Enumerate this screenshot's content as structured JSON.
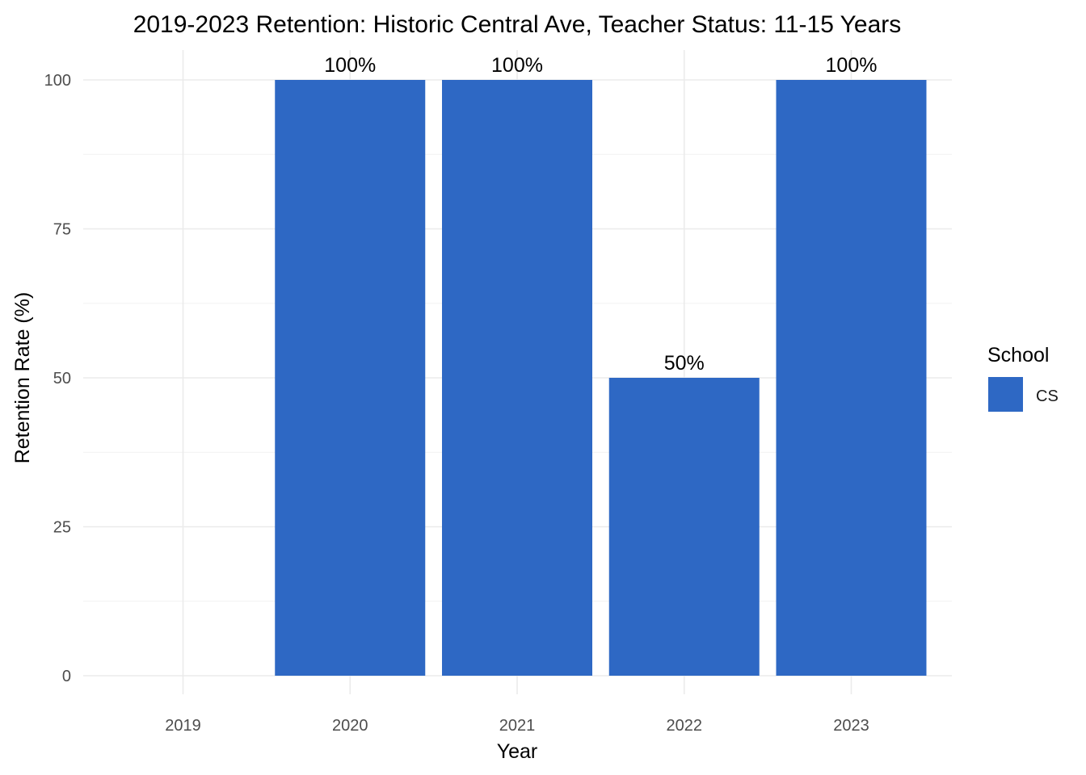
{
  "chart_data": {
    "type": "bar",
    "title": "2019-2023 Retention: Historic Central Ave, Teacher Status: 11-15 Years",
    "xlabel": "Year",
    "ylabel": "Retention Rate (%)",
    "categories": [
      "2019",
      "2020",
      "2021",
      "2022",
      "2023"
    ],
    "series": [
      {
        "name": "CS",
        "color": "#2e68c4",
        "values": [
          null,
          100,
          100,
          50,
          100
        ],
        "labels": [
          "",
          "100%",
          "100%",
          "50%",
          "100%"
        ]
      }
    ],
    "yticks": [
      0,
      25,
      50,
      75,
      100
    ],
    "ytick_labels": [
      "0",
      "25",
      "50",
      "75",
      "100"
    ],
    "ylim": [
      0,
      100
    ],
    "grid": true,
    "legend": {
      "title": "School",
      "position": "right"
    }
  }
}
